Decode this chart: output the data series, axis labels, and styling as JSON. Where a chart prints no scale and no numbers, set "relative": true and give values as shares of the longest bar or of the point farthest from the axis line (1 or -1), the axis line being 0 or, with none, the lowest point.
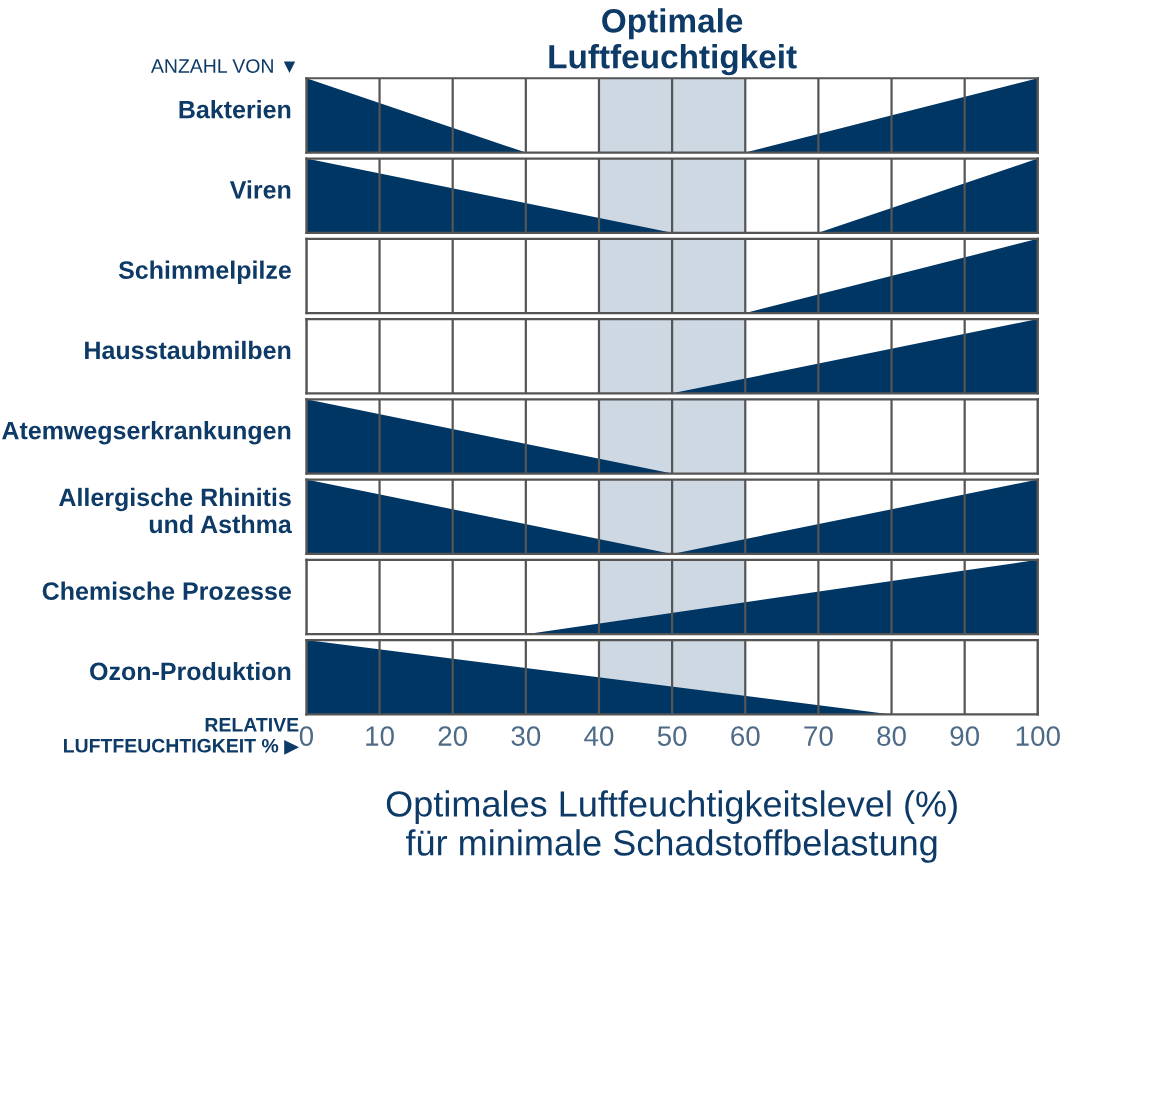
{
  "chart_data": [
    {
      "type": "area",
      "relative": true,
      "ylabel": "Bakterien",
      "x": [
        0,
        30,
        60,
        100
      ],
      "values": [
        1,
        0,
        0,
        1
      ],
      "color": "#003663",
      "xlim": [
        0,
        100
      ],
      "xticks": [
        0,
        10,
        20,
        30,
        40,
        50,
        60,
        70,
        80,
        90,
        100
      ],
      "grid": "x",
      "tick_labels": false,
      "annotations": [
        "ANZAHL VON ▼"
      ],
      "bands": [
        {
          "axis": "x",
          "from": 40,
          "to": 60,
          "label": "Optimale\nLuftfeuchtigkeit",
          "color": "#cdd8e3"
        }
      ]
    },
    {
      "type": "area",
      "relative": true,
      "ylabel": "Viren",
      "x": [
        0,
        50,
        70,
        100
      ],
      "values": [
        1,
        0,
        0,
        1
      ],
      "color": "#003663",
      "xlim": [
        0,
        100
      ],
      "xticks": [
        0,
        10,
        20,
        30,
        40,
        50,
        60,
        70,
        80,
        90,
        100
      ],
      "grid": "x",
      "tick_labels": false,
      "bands": [
        {
          "axis": "x",
          "from": 40,
          "to": 60,
          "color": "#cdd8e3"
        }
      ]
    },
    {
      "type": "area",
      "relative": true,
      "ylabel": "Schimmelpilze",
      "x": [
        0,
        60,
        100
      ],
      "values": [
        0,
        0,
        1
      ],
      "color": "#003663",
      "xlim": [
        0,
        100
      ],
      "xticks": [
        0,
        10,
        20,
        30,
        40,
        50,
        60,
        70,
        80,
        90,
        100
      ],
      "grid": "x",
      "tick_labels": false,
      "bands": [
        {
          "axis": "x",
          "from": 40,
          "to": 60,
          "color": "#cdd8e3"
        }
      ]
    },
    {
      "type": "area",
      "relative": true,
      "ylabel": "Hausstaubmilben",
      "x": [
        0,
        50,
        100
      ],
      "values": [
        0,
        0,
        1
      ],
      "color": "#003663",
      "xlim": [
        0,
        100
      ],
      "xticks": [
        0,
        10,
        20,
        30,
        40,
        50,
        60,
        70,
        80,
        90,
        100
      ],
      "grid": "x",
      "tick_labels": false,
      "bands": [
        {
          "axis": "x",
          "from": 40,
          "to": 60,
          "color": "#cdd8e3"
        }
      ]
    },
    {
      "type": "area",
      "relative": true,
      "ylabel": "Atemwegserkrankungen",
      "x": [
        0,
        50,
        100
      ],
      "values": [
        1,
        0,
        0
      ],
      "color": "#003663",
      "xlim": [
        0,
        100
      ],
      "xticks": [
        0,
        10,
        20,
        30,
        40,
        50,
        60,
        70,
        80,
        90,
        100
      ],
      "grid": "x",
      "tick_labels": false,
      "bands": [
        {
          "axis": "x",
          "from": 40,
          "to": 60,
          "color": "#cdd8e3"
        }
      ]
    },
    {
      "type": "area",
      "relative": true,
      "ylabel": "Allergische Rhinitis\nund Asthma",
      "x": [
        0,
        50,
        100
      ],
      "values": [
        1,
        0,
        1
      ],
      "color": "#003663",
      "xlim": [
        0,
        100
      ],
      "xticks": [
        0,
        10,
        20,
        30,
        40,
        50,
        60,
        70,
        80,
        90,
        100
      ],
      "grid": "x",
      "tick_labels": false,
      "bands": [
        {
          "axis": "x",
          "from": 40,
          "to": 60,
          "color": "#cdd8e3"
        }
      ]
    },
    {
      "type": "area",
      "relative": true,
      "ylabel": "Chemische Prozesse",
      "x": [
        0,
        30,
        100
      ],
      "values": [
        0,
        0,
        1
      ],
      "color": "#003663",
      "xlim": [
        0,
        100
      ],
      "xticks": [
        0,
        10,
        20,
        30,
        40,
        50,
        60,
        70,
        80,
        90,
        100
      ],
      "grid": "x",
      "tick_labels": false,
      "bands": [
        {
          "axis": "x",
          "from": 40,
          "to": 60,
          "color": "#cdd8e3"
        }
      ]
    },
    {
      "type": "area",
      "relative": true,
      "ylabel": "Ozon-Produktion",
      "x": [
        0,
        80,
        100
      ],
      "values": [
        1,
        0,
        0
      ],
      "color": "#003663",
      "xlim": [
        0,
        100
      ],
      "xticks": [
        0,
        10,
        20,
        30,
        40,
        50,
        60,
        70,
        80,
        90,
        100
      ],
      "grid": "x",
      "tick_labels": "x",
      "annotations": [
        "RELATIVE\nLUFTFEUCHTIGKEIT % ▶"
      ],
      "xlabel": "Optimales Luftfeuchtigkeitslevel (%)\nfür minimale Schadstoffbelastung",
      "bands": [
        {
          "axis": "x",
          "from": 40,
          "to": 60,
          "color": "#cdd8e3"
        }
      ]
    }
  ]
}
